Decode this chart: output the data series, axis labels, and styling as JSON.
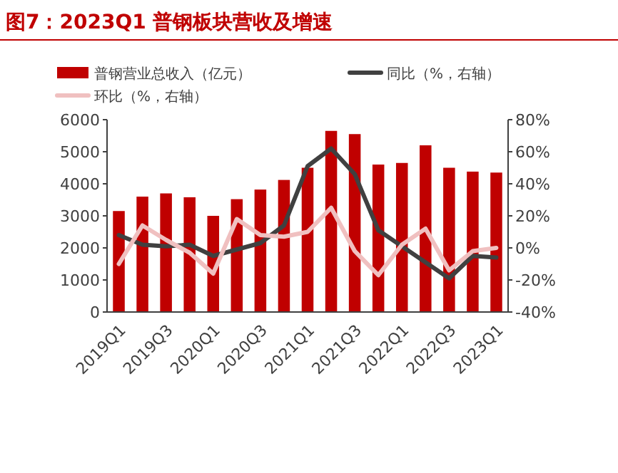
{
  "chart_data": {
    "type": "bar",
    "title": "图7：2023Q1 普钢板块营收及增速",
    "categories": [
      "2019Q1",
      null,
      "2019Q3",
      null,
      "2020Q1",
      null,
      "2020Q3",
      null,
      "2021Q1",
      null,
      "2021Q3",
      null,
      "2022Q1",
      null,
      "2022Q3",
      null,
      "2023Q1"
    ],
    "series": [
      {
        "name": "普钢营业总收入（亿元）",
        "color": "#c00000",
        "values": [
          3150,
          3600,
          3700,
          3580,
          3000,
          3520,
          3820,
          4120,
          4500,
          5650,
          5550,
          4600,
          4650,
          5200,
          4500,
          4380,
          4350
        ]
      },
      {
        "name": "同比（%，右轴）",
        "type": "line",
        "axis": "y2",
        "color": "#404040",
        "values": [
          8,
          2,
          1,
          2,
          -5,
          -1,
          3,
          14,
          51,
          62,
          46,
          11,
          1,
          -9,
          -19,
          -5,
          -6
        ]
      },
      {
        "name": "环比（%，右轴）",
        "type": "line",
        "axis": "y2",
        "color": "#f0c0c0",
        "values": [
          -10,
          14,
          5,
          -3,
          -16,
          18,
          8,
          7,
          10,
          25,
          -2,
          -17,
          2,
          12,
          -14,
          -2,
          0
        ]
      }
    ],
    "ylim": [
      0,
      6000
    ],
    "yticks": [
      0,
      1000,
      2000,
      3000,
      4000,
      5000,
      6000
    ],
    "y2lim": [
      -40,
      80
    ],
    "y2ticks": [
      {
        "value": -40,
        "label": "-40%"
      },
      {
        "value": -20,
        "label": "-20%"
      },
      {
        "value": 0,
        "label": "0%"
      },
      {
        "value": 20,
        "label": "20%"
      },
      {
        "value": 40,
        "label": "40%"
      },
      {
        "value": 60,
        "label": "60%"
      },
      {
        "value": 80,
        "label": "80%"
      }
    ],
    "grid": false,
    "legend": "top"
  }
}
